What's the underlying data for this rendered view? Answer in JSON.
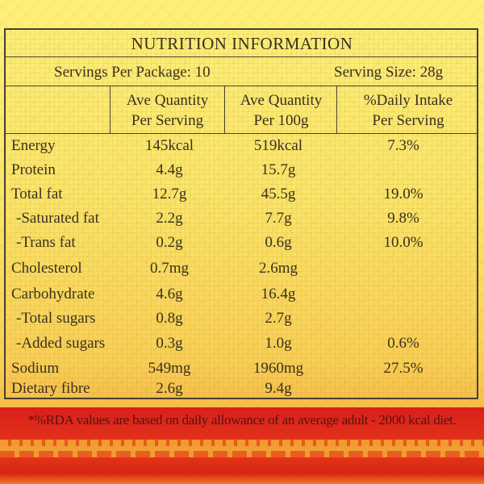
{
  "title": "NUTRITION INFORMATION",
  "servings_per_package": "Servings Per Package: 10",
  "serving_size": "Serving Size: 28g",
  "columns": [
    {
      "line1": "Ave Quantity",
      "line2": "Per Serving"
    },
    {
      "line1": "Ave Quantity",
      "line2": "Per 100g"
    },
    {
      "line1": "%Daily Intake",
      "line2": "Per Serving"
    }
  ],
  "rows": [
    {
      "label": "Energy",
      "per_serving": "145kcal",
      "per_100g": "519kcal",
      "daily_intake": "7.3%"
    },
    {
      "label": "Protein",
      "per_serving": "4.4g",
      "per_100g": "15.7g",
      "daily_intake": ""
    },
    {
      "label": "Total fat",
      "per_serving": "12.7g",
      "per_100g": "45.5g",
      "daily_intake": "19.0%"
    },
    {
      "label": "-Saturated fat",
      "per_serving": "2.2g",
      "per_100g": "7.7g",
      "daily_intake": "9.8%"
    },
    {
      "label": "-Trans fat",
      "per_serving": "0.2g",
      "per_100g": "0.6g",
      "daily_intake": "10.0%"
    },
    {
      "label": "Cholesterol",
      "per_serving": "0.7mg",
      "per_100g": "2.6mg",
      "daily_intake": ""
    },
    {
      "label": "Carbohydrate",
      "per_serving": "4.6g",
      "per_100g": "16.4g",
      "daily_intake": ""
    },
    {
      "label": "-Total sugars",
      "per_serving": "0.8g",
      "per_100g": "2.7g",
      "daily_intake": ""
    },
    {
      "label": "-Added sugars",
      "per_serving": "0.3g",
      "per_100g": "1.0g",
      "daily_intake": "0.6%"
    },
    {
      "label": "Sodium",
      "per_serving": "549mg",
      "per_100g": "1960mg",
      "daily_intake": "27.5%"
    },
    {
      "label": "Dietary fibre",
      "per_serving": "2.6g",
      "per_100g": "9.4g",
      "daily_intake": ""
    }
  ],
  "footnote": "*%RDA values are based on daily allowance of an average adult - 2000 kcal diet.",
  "colors": {
    "background": "#fbe56a",
    "border": "#4a4030",
    "banner": "#d8201a",
    "text": "#3a3020"
  }
}
